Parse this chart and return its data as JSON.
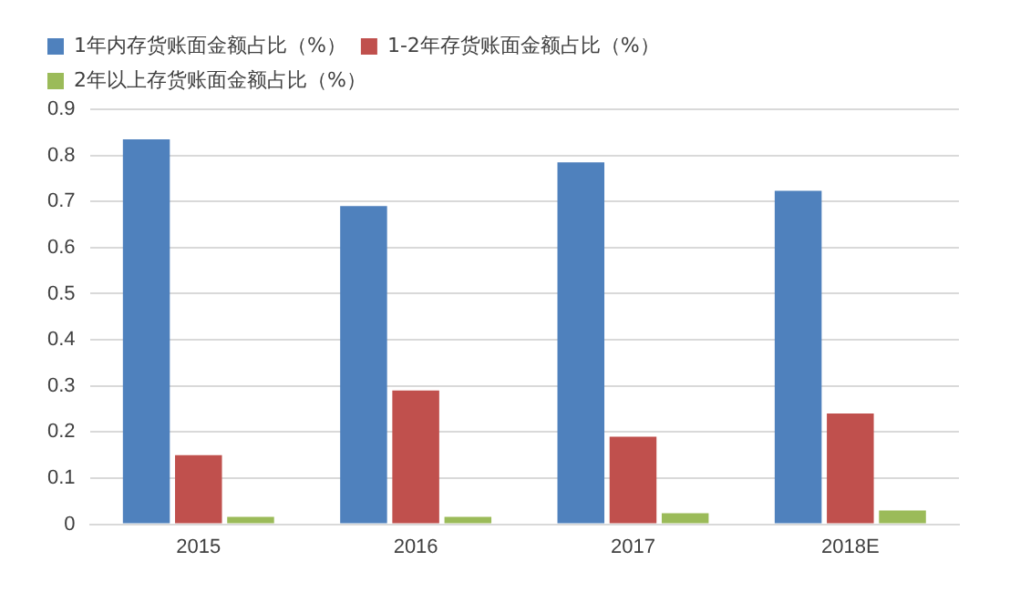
{
  "chart_data": {
    "type": "bar",
    "categories": [
      "2015",
      "2016",
      "2017",
      "2018E"
    ],
    "series": [
      {
        "name": "1年内存货账面金额占比（%）",
        "color": "#4f81bd",
        "values": [
          0.835,
          0.69,
          0.785,
          0.723
        ]
      },
      {
        "name": "1-2年存货账面金额占比（%）",
        "color": "#c0504d",
        "values": [
          0.15,
          0.29,
          0.19,
          0.24
        ]
      },
      {
        "name": "2年以上存货账面金额占比（%）",
        "color": "#9bbb59",
        "values": [
          0.016,
          0.016,
          0.024,
          0.03
        ]
      }
    ],
    "ylim": [
      0,
      0.9
    ],
    "yticks": [
      0,
      0.1,
      0.2,
      0.3,
      0.4,
      0.5,
      0.6,
      0.7,
      0.8,
      0.9
    ],
    "grid": "y",
    "legend": "top left"
  }
}
